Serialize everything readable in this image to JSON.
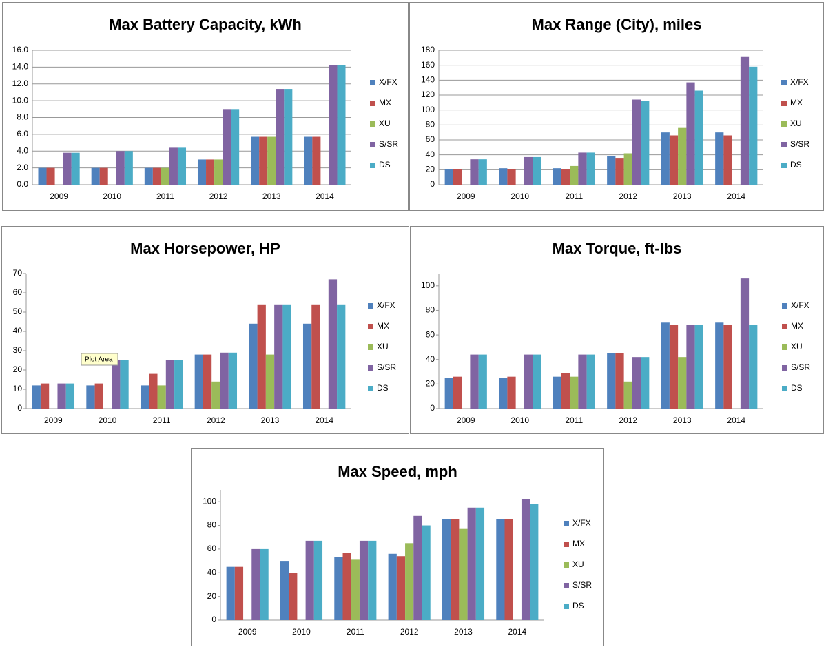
{
  "chart_data": [
    {
      "type": "bar",
      "title": "Max Battery Capacity, kWh",
      "categories": [
        "2009",
        "2010",
        "2011",
        "2012",
        "2013",
        "2014"
      ],
      "series": [
        {
          "name": "X/FX",
          "color": "#4f81bd",
          "values": [
            2.0,
            2.0,
            2.0,
            3.0,
            5.7,
            5.7
          ]
        },
        {
          "name": "MX",
          "color": "#c0504d",
          "values": [
            2.0,
            2.0,
            2.0,
            3.0,
            5.7,
            5.7
          ]
        },
        {
          "name": "XU",
          "color": "#9bbb59",
          "values": [
            null,
            null,
            2.0,
            3.0,
            5.7,
            null
          ]
        },
        {
          "name": "S/SR",
          "color": "#8064a2",
          "values": [
            3.8,
            4.0,
            4.4,
            9.0,
            11.4,
            14.2
          ]
        },
        {
          "name": "DS",
          "color": "#4bacc6",
          "values": [
            3.8,
            4.0,
            4.4,
            9.0,
            11.4,
            14.2
          ]
        }
      ],
      "ylim": [
        0,
        16
      ],
      "yticks": [
        {
          "value": 0,
          "label": "0.0"
        },
        {
          "value": 2,
          "label": "2.0"
        },
        {
          "value": 4,
          "label": "4.0"
        },
        {
          "value": 6,
          "label": "6.0"
        },
        {
          "value": 8,
          "label": "8.0"
        },
        {
          "value": 10,
          "label": "10.0"
        },
        {
          "value": 12,
          "label": "12.0"
        },
        {
          "value": 14,
          "label": "14.0"
        },
        {
          "value": 16,
          "label": "16.0"
        }
      ],
      "grid": true,
      "legend": "right"
    },
    {
      "type": "bar",
      "title": "Max Range (City), miles",
      "categories": [
        "2009",
        "2010",
        "2011",
        "2012",
        "2013",
        "2014"
      ],
      "series": [
        {
          "name": "X/FX",
          "color": "#4f81bd",
          "values": [
            21,
            22,
            22,
            38,
            70,
            70
          ]
        },
        {
          "name": "MX",
          "color": "#c0504d",
          "values": [
            21,
            21,
            21,
            35,
            66,
            66
          ]
        },
        {
          "name": "XU",
          "color": "#9bbb59",
          "values": [
            null,
            null,
            25,
            42,
            76,
            null
          ]
        },
        {
          "name": "S/SR",
          "color": "#8064a2",
          "values": [
            34,
            37,
            43,
            114,
            137,
            171
          ]
        },
        {
          "name": "DS",
          "color": "#4bacc6",
          "values": [
            34,
            37,
            43,
            112,
            126,
            158
          ]
        }
      ],
      "ylim": [
        0,
        180
      ],
      "yticks": [
        0,
        20,
        40,
        60,
        80,
        100,
        120,
        140,
        160,
        180
      ],
      "grid": true,
      "legend": "right"
    },
    {
      "type": "bar",
      "title": "Max Horsepower, HP",
      "categories": [
        "2009",
        "2010",
        "2011",
        "2012",
        "2013",
        "2014"
      ],
      "series": [
        {
          "name": "X/FX",
          "color": "#4f81bd",
          "values": [
            12,
            12,
            12,
            28,
            44,
            44
          ]
        },
        {
          "name": "MX",
          "color": "#c0504d",
          "values": [
            13,
            13,
            18,
            28,
            54,
            54
          ]
        },
        {
          "name": "XU",
          "color": "#9bbb59",
          "values": [
            null,
            null,
            12,
            14,
            28,
            null
          ]
        },
        {
          "name": "S/SR",
          "color": "#8064a2",
          "values": [
            13,
            25,
            25,
            29,
            54,
            67
          ]
        },
        {
          "name": "DS",
          "color": "#4bacc6",
          "values": [
            13,
            25,
            25,
            29,
            54,
            54
          ]
        }
      ],
      "ylim": [
        0,
        70
      ],
      "yticks": [
        0,
        10,
        20,
        30,
        40,
        50,
        60,
        70
      ],
      "grid": false,
      "legend": "right",
      "annotation": "Plot Area"
    },
    {
      "type": "bar",
      "title": "Max Torque, ft-lbs",
      "categories": [
        "2009",
        "2010",
        "2011",
        "2012",
        "2013",
        "2014"
      ],
      "series": [
        {
          "name": "X/FX",
          "color": "#4f81bd",
          "values": [
            25,
            25,
            26,
            45,
            70,
            70
          ]
        },
        {
          "name": "MX",
          "color": "#c0504d",
          "values": [
            26,
            26,
            29,
            45,
            68,
            68
          ]
        },
        {
          "name": "XU",
          "color": "#9bbb59",
          "values": [
            null,
            null,
            26,
            22,
            42,
            null
          ]
        },
        {
          "name": "S/SR",
          "color": "#8064a2",
          "values": [
            44,
            44,
            44,
            42,
            68,
            106
          ]
        },
        {
          "name": "DS",
          "color": "#4bacc6",
          "values": [
            44,
            44,
            44,
            42,
            68,
            68
          ]
        }
      ],
      "ylim": [
        0,
        110
      ],
      "yticks": [
        0,
        20,
        40,
        60,
        80,
        100
      ],
      "grid": false,
      "legend": "right"
    },
    {
      "type": "bar",
      "title": "Max Speed, mph",
      "categories": [
        "2009",
        "2010",
        "2011",
        "2012",
        "2013",
        "2014"
      ],
      "series": [
        {
          "name": "X/FX",
          "color": "#4f81bd",
          "values": [
            45,
            50,
            53,
            56,
            85,
            85
          ]
        },
        {
          "name": "MX",
          "color": "#c0504d",
          "values": [
            45,
            40,
            57,
            54,
            85,
            85
          ]
        },
        {
          "name": "XU",
          "color": "#9bbb59",
          "values": [
            null,
            null,
            51,
            65,
            77,
            null
          ]
        },
        {
          "name": "S/SR",
          "color": "#8064a2",
          "values": [
            60,
            67,
            67,
            88,
            95,
            102
          ]
        },
        {
          "name": "DS",
          "color": "#4bacc6",
          "values": [
            60,
            67,
            67,
            80,
            95,
            98
          ]
        }
      ],
      "ylim": [
        0,
        110
      ],
      "yticks": [
        0,
        20,
        40,
        60,
        80,
        100
      ],
      "grid": false,
      "legend": "right"
    }
  ]
}
